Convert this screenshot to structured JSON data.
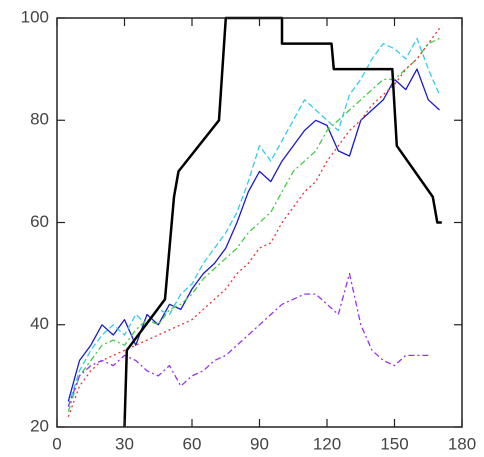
{
  "chart_data": {
    "type": "line",
    "xlim": [
      0,
      180
    ],
    "xticks": [
      0,
      30,
      60,
      90,
      120,
      150,
      180
    ],
    "ylim": [
      20,
      100
    ],
    "yticks": [
      20,
      40,
      60,
      80,
      100
    ],
    "x": [
      5,
      10,
      15,
      20,
      25,
      30,
      35,
      40,
      45,
      50,
      55,
      60,
      65,
      70,
      75,
      80,
      85,
      90,
      95,
      100,
      105,
      110,
      115,
      120,
      125,
      130,
      135,
      140,
      145,
      150,
      155,
      160,
      165,
      170
    ],
    "series": [
      {
        "color": "#1a1acd",
        "style": "solid",
        "values": [
          25,
          33,
          36,
          40,
          38,
          41,
          36,
          42,
          40,
          44,
          43,
          47,
          50,
          52,
          55,
          60,
          66,
          70,
          68,
          72,
          75,
          78,
          80,
          79,
          74,
          73,
          80,
          82,
          84,
          88,
          86,
          90,
          84,
          82
        ]
      },
      {
        "color": "#33ccee",
        "style": "dashed",
        "values": [
          24,
          31,
          35,
          38,
          40,
          38,
          42,
          40,
          43,
          42,
          46,
          48,
          52,
          55,
          58,
          62,
          68,
          75,
          72,
          76,
          80,
          84,
          82,
          80,
          78,
          85,
          88,
          92,
          95,
          94,
          92,
          96,
          90,
          85
        ]
      },
      {
        "color": "#44cc44",
        "style": "dashdot",
        "values": [
          23,
          30,
          33,
          36,
          37,
          36,
          39,
          41,
          40,
          43,
          44,
          46,
          49,
          51,
          53,
          55,
          58,
          60,
          62,
          66,
          70,
          72,
          74,
          78,
          80,
          82,
          84,
          86,
          88,
          88,
          90,
          92,
          95,
          96
        ]
      },
      {
        "color": "#ee3333",
        "style": "dotted",
        "values": [
          22,
          28,
          31,
          33,
          34,
          35,
          36,
          37,
          38,
          39,
          40,
          41,
          43,
          45,
          47,
          50,
          52,
          55,
          56,
          60,
          63,
          66,
          68,
          72,
          75,
          78,
          80,
          83,
          85,
          87,
          90,
          92,
          95,
          98
        ]
      },
      {
        "color": "#9933ee",
        "style": "dashdot",
        "values": [
          24,
          30,
          32,
          33,
          32,
          34,
          33,
          31,
          30,
          32,
          28,
          30,
          31,
          33,
          34,
          36,
          38,
          40,
          42,
          44,
          45,
          46,
          46,
          44,
          42,
          50,
          40,
          35,
          33,
          32,
          34,
          34,
          34,
          null
        ]
      },
      {
        "color": "#000000",
        "style": "solid",
        "width": 2.5,
        "x": [
          30,
          31,
          48,
          52,
          54,
          72,
          75,
          100,
          100,
          122,
          123,
          149,
          151,
          167,
          169,
          171
        ],
        "values": [
          20,
          35,
          45,
          65,
          70,
          80,
          100,
          100,
          95,
          95,
          90,
          90,
          75,
          65,
          60,
          60
        ]
      }
    ]
  }
}
